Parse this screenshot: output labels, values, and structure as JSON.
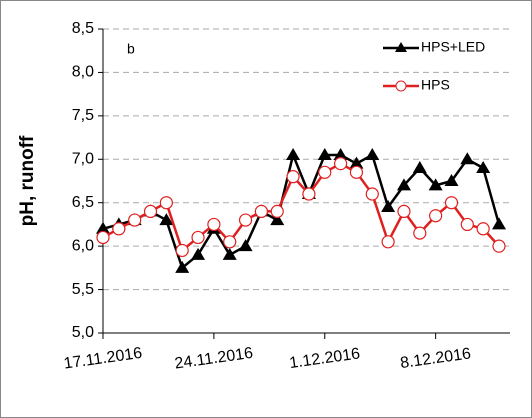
{
  "chart_data": {
    "type": "line",
    "annotation": "b",
    "ylabel": "pH, runoff",
    "x": [
      "2016-11-17",
      "2016-11-18",
      "2016-11-19",
      "2016-11-20",
      "2016-11-21",
      "2016-11-22",
      "2016-11-23",
      "2016-11-24",
      "2016-11-25",
      "2016-11-26",
      "2016-11-27",
      "2016-11-28",
      "2016-11-29",
      "2016-11-30",
      "2016-12-01",
      "2016-12-02",
      "2016-12-03",
      "2016-12-04",
      "2016-12-05",
      "2016-12-06",
      "2016-12-07",
      "2016-12-08",
      "2016-12-09",
      "2016-12-10",
      "2016-12-11",
      "2016-12-12"
    ],
    "series": [
      {
        "name": "HPS+LED",
        "color": "#000000",
        "marker": "triangle",
        "values": [
          6.2,
          6.25,
          6.3,
          6.4,
          6.3,
          5.75,
          5.9,
          6.2,
          5.9,
          6.0,
          6.4,
          6.3,
          7.05,
          6.6,
          7.05,
          7.05,
          6.95,
          7.05,
          6.45,
          6.7,
          6.9,
          6.7,
          6.75,
          7.0,
          6.9,
          6.25
        ]
      },
      {
        "name": "HPS",
        "color": "#e02020",
        "marker": "circle",
        "values": [
          6.1,
          6.2,
          6.3,
          6.4,
          6.5,
          5.95,
          6.1,
          6.25,
          6.05,
          6.3,
          6.4,
          6.4,
          6.8,
          6.6,
          6.85,
          6.95,
          6.85,
          6.6,
          6.05,
          6.4,
          6.15,
          6.35,
          6.5,
          6.25,
          6.2,
          6.0
        ]
      }
    ],
    "xlim": [
      "2016-11-17",
      "2016-12-12"
    ],
    "xticks": [
      {
        "value": "2016-11-17",
        "label": "17.11.2016"
      },
      {
        "value": "2016-11-24",
        "label": "24.11.2016"
      },
      {
        "value": "2016-12-01",
        "label": "1.12.2016"
      },
      {
        "value": "2016-12-08",
        "label": "8.12.2016"
      }
    ],
    "ylim": [
      5.0,
      8.5
    ],
    "yticks": [
      {
        "value": 5.0,
        "label": "5,0"
      },
      {
        "value": 5.5,
        "label": "5,5"
      },
      {
        "value": 6.0,
        "label": "6,0"
      },
      {
        "value": 6.5,
        "label": "6,5"
      },
      {
        "value": 7.0,
        "label": "7,0"
      },
      {
        "value": 7.5,
        "label": "7,5"
      },
      {
        "value": 8.0,
        "label": "8,0"
      },
      {
        "value": 8.5,
        "label": "8,5"
      }
    ],
    "grid": true,
    "legend": "upper right"
  }
}
